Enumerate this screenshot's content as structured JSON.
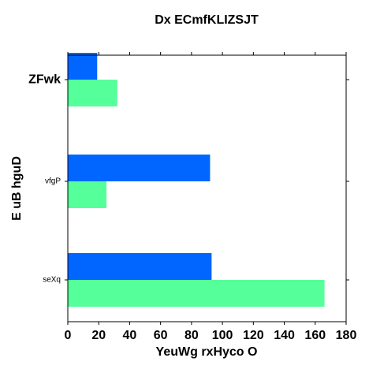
{
  "chart_data": {
    "type": "bar",
    "orientation": "horizontal",
    "title": "Dx ECmfKLIZSJT",
    "xlabel": "YeuWg rxHyco O",
    "ylabel": "E uB hguD",
    "categories": [
      "ZFwk",
      "vfgP",
      "seXq"
    ],
    "series": [
      {
        "color": "#0066ff",
        "values": [
          19,
          92,
          93
        ]
      },
      {
        "color": "#55ff99",
        "values": [
          32,
          25,
          166
        ]
      }
    ],
    "xlim": [
      0,
      180
    ],
    "x_ticks": [
      0,
      20,
      40,
      60,
      80,
      100,
      120,
      140,
      160,
      180
    ],
    "grid": false,
    "legend": "none"
  }
}
